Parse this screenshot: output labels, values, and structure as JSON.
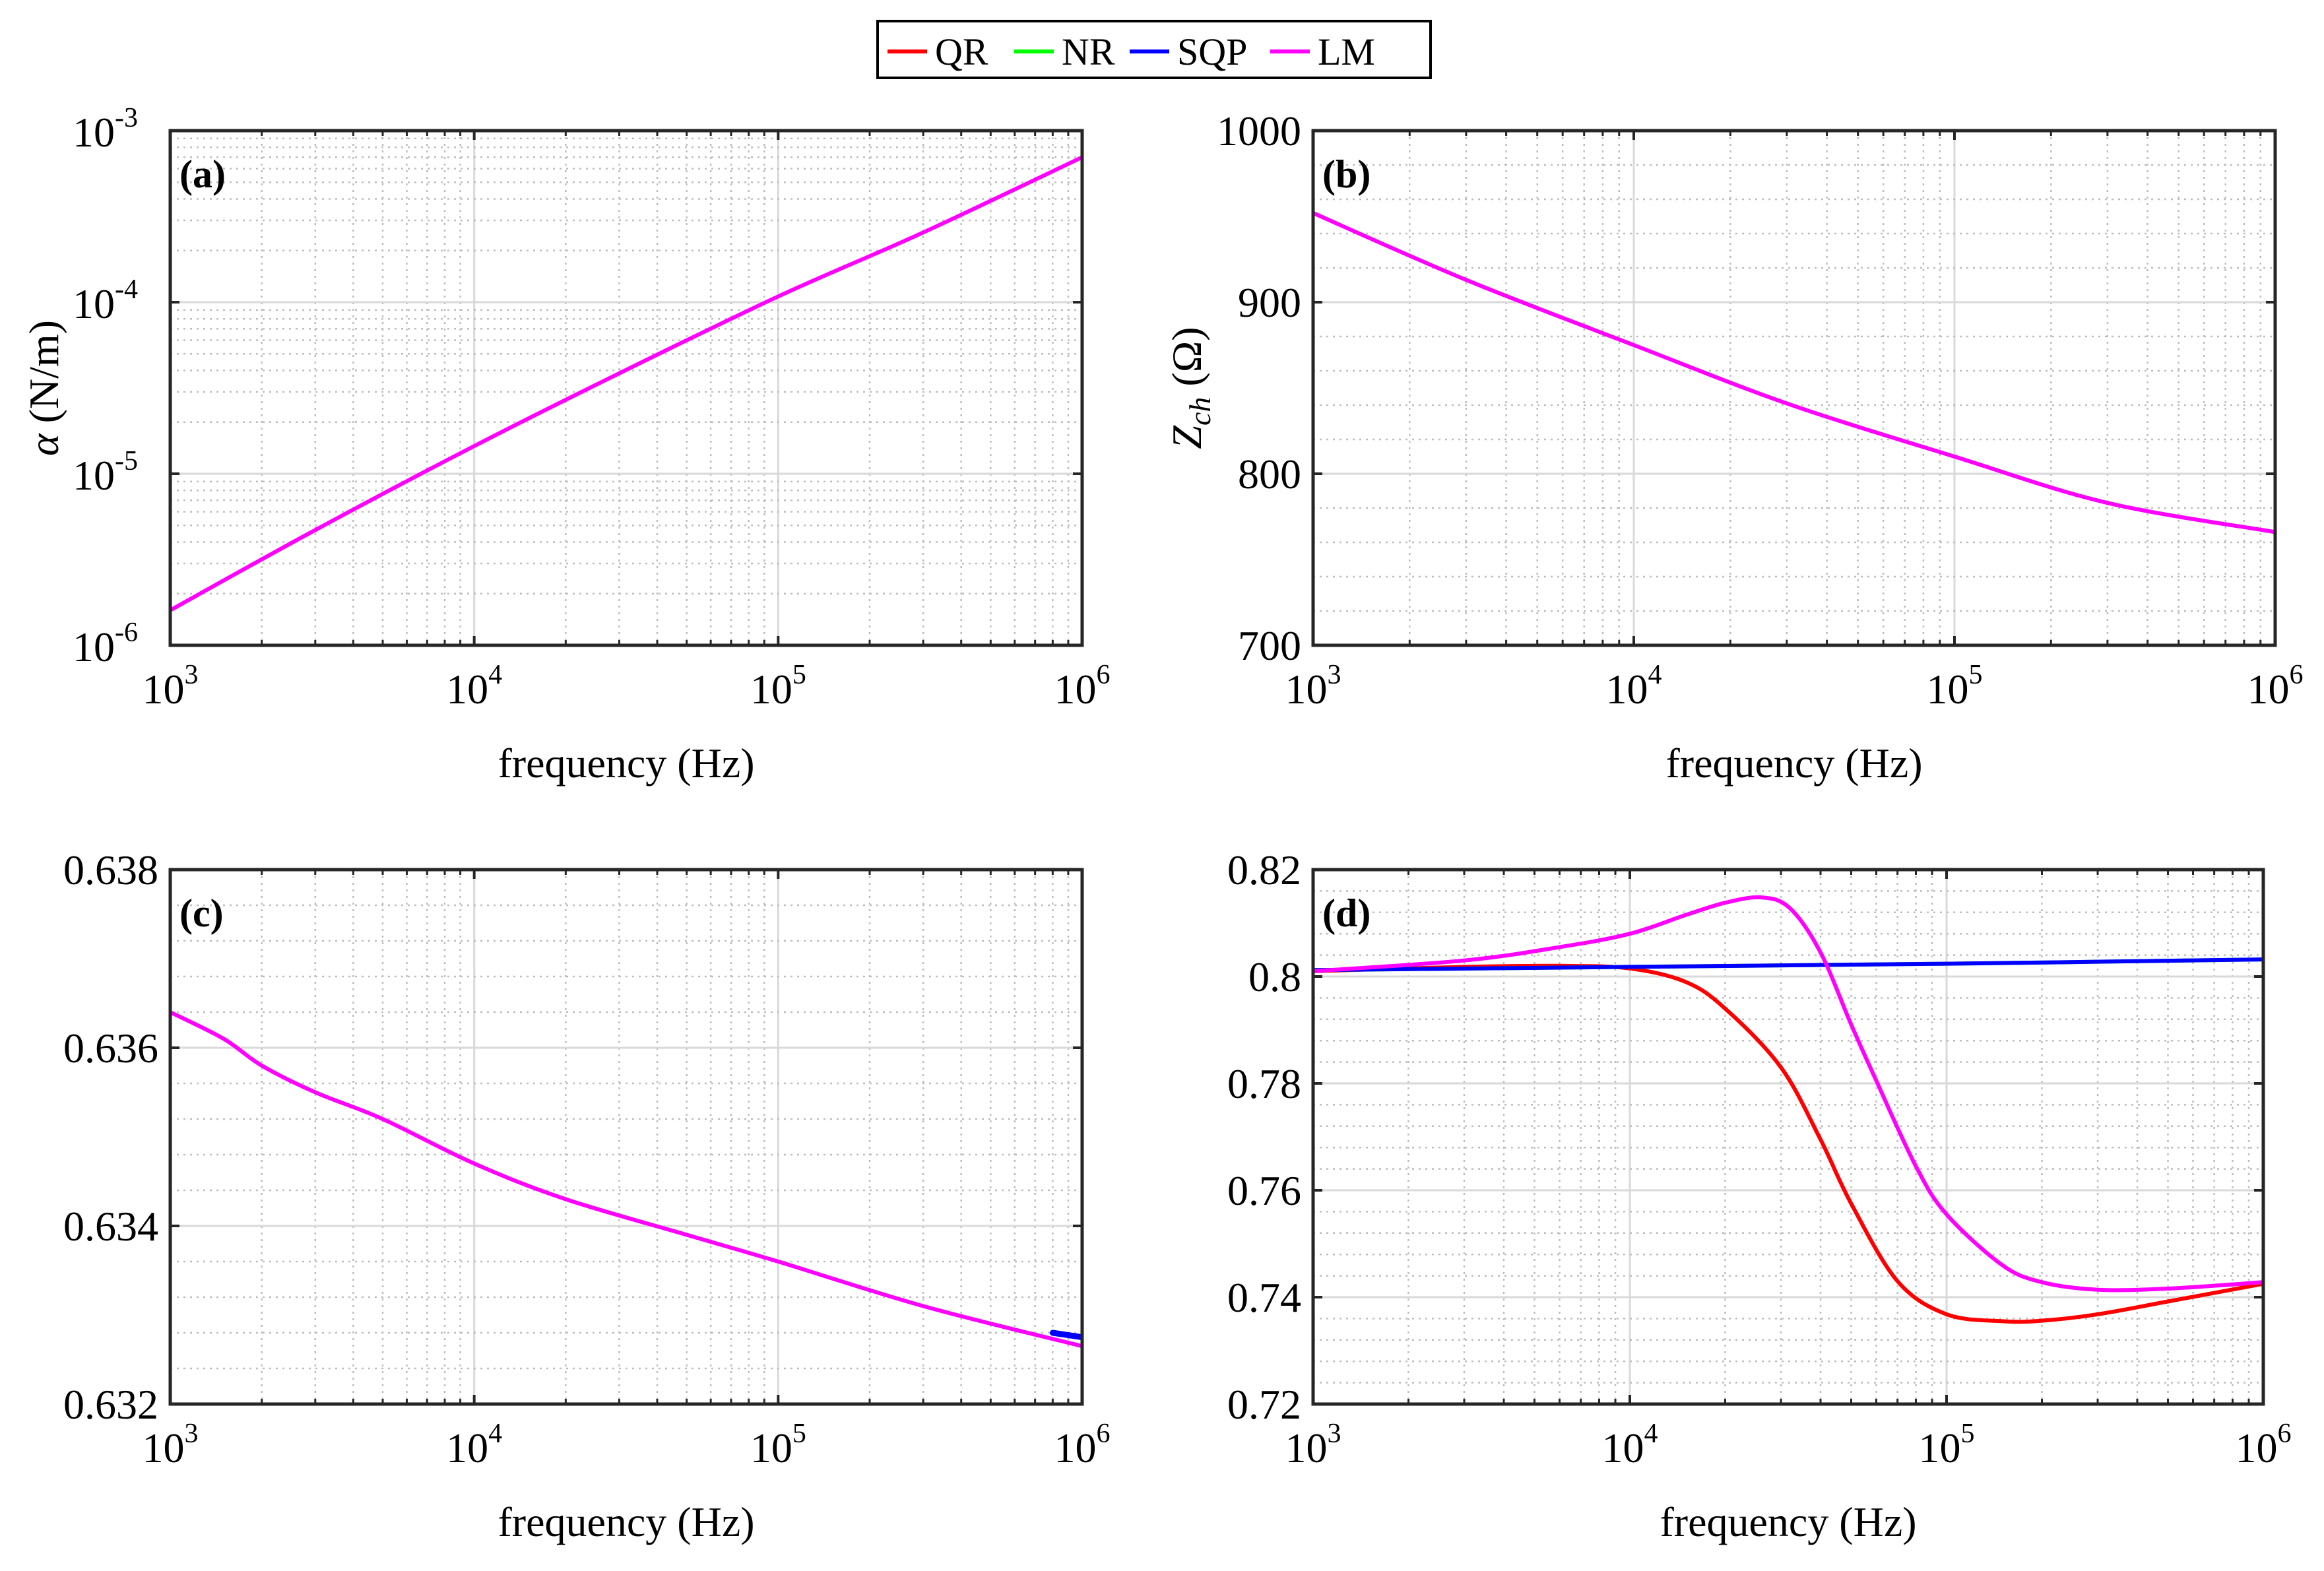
{
  "legend": {
    "entries": [
      {
        "name": "QR",
        "color": "#ff0000"
      },
      {
        "name": "NR",
        "color": "#00ff00"
      },
      {
        "name": "SQP",
        "color": "#0000ff"
      },
      {
        "name": "LM",
        "color": "#ff00ff"
      }
    ]
  },
  "chart_data": [
    {
      "id": "a",
      "type": "line",
      "panel_label": "(a)",
      "xscale": "log",
      "yscale": "log",
      "xlim": [
        1000,
        1000000
      ],
      "ylim": [
        1e-06,
        0.001
      ],
      "xlabel": "frequency (Hz)",
      "ylabel_main": "α",
      "ylabel_sub": "",
      "ylabel_rest": " (N/m)",
      "xticks": [
        {
          "base": "10",
          "exp": "3"
        },
        {
          "base": "10",
          "exp": "4"
        },
        {
          "base": "10",
          "exp": "5"
        },
        {
          "base": "10",
          "exp": "6"
        }
      ],
      "yticks": [
        {
          "base": "10",
          "exp": "-6"
        },
        {
          "base": "10",
          "exp": "-5"
        },
        {
          "base": "10",
          "exp": "-4"
        },
        {
          "base": "10",
          "exp": "-3"
        }
      ],
      "grid": true,
      "series": [
        {
          "name": "LM",
          "x": [
            1000,
            3000,
            10000,
            30000,
            100000,
            300000,
            1000000
          ],
          "y": [
            1.6e-06,
            4.7e-06,
            1.45e-05,
            3.85e-05,
            0.000108,
            0.000255,
            0.0007
          ]
        }
      ]
    },
    {
      "id": "b",
      "type": "line",
      "panel_label": "(b)",
      "xscale": "log",
      "yscale": "linear",
      "xlim": [
        1000,
        1000000
      ],
      "ylim": [
        700,
        1000
      ],
      "xlabel": "frequency (Hz)",
      "ylabel_main": "Z",
      "ylabel_sub": "ch",
      "ylabel_rest": " (Ω)",
      "xticks": [
        {
          "base": "10",
          "exp": "3"
        },
        {
          "base": "10",
          "exp": "4"
        },
        {
          "base": "10",
          "exp": "5"
        },
        {
          "base": "10",
          "exp": "6"
        }
      ],
      "yticks": [
        {
          "value": 700,
          "label": "700"
        },
        {
          "value": 800,
          "label": "800"
        },
        {
          "value": 900,
          "label": "900"
        },
        {
          "value": 1000,
          "label": "1000"
        }
      ],
      "grid": true,
      "series": [
        {
          "name": "LM",
          "x": [
            1000,
            3000,
            10000,
            30000,
            100000,
            300000,
            1000000
          ],
          "y": [
            952,
            913,
            875,
            841,
            810,
            783,
            766
          ]
        }
      ]
    },
    {
      "id": "c",
      "type": "line",
      "panel_label": "(c)",
      "xscale": "log",
      "yscale": "linear",
      "xlim": [
        1000,
        1000000
      ],
      "ylim": [
        0.632,
        0.638
      ],
      "xlabel": "frequency (Hz)",
      "ylabel_main": "",
      "ylabel_sub": "",
      "ylabel_rest": "",
      "xticks": [
        {
          "base": "10",
          "exp": "3"
        },
        {
          "base": "10",
          "exp": "4"
        },
        {
          "base": "10",
          "exp": "5"
        },
        {
          "base": "10",
          "exp": "6"
        }
      ],
      "yticks": [
        {
          "value": 0.632,
          "label": "0.632"
        },
        {
          "value": 0.634,
          "label": "0.634"
        },
        {
          "value": 0.636,
          "label": "0.636"
        },
        {
          "value": 0.638,
          "label": "0.638"
        }
      ],
      "grid": true,
      "series": [
        {
          "name": "SQP",
          "x": [
            800000,
            1000000
          ],
          "y": [
            0.6328,
            0.63275
          ]
        },
        {
          "name": "LM",
          "x": [
            1000,
            1500,
            2000,
            3000,
            5000,
            10000,
            20000,
            50000,
            100000,
            300000,
            1000000
          ],
          "y": [
            0.6364,
            0.6361,
            0.6358,
            0.6355,
            0.6352,
            0.6347,
            0.6343,
            0.6339,
            0.6336,
            0.6331,
            0.63265
          ]
        }
      ]
    },
    {
      "id": "d",
      "type": "line",
      "panel_label": "(d)",
      "xscale": "log",
      "yscale": "linear",
      "xlim": [
        1000,
        1000000
      ],
      "ylim": [
        0.72,
        0.82
      ],
      "xlabel": "frequency (Hz)",
      "ylabel_main": "",
      "ylabel_sub": "",
      "ylabel_rest": "",
      "xticks": [
        {
          "base": "10",
          "exp": "3"
        },
        {
          "base": "10",
          "exp": "4"
        },
        {
          "base": "10",
          "exp": "5"
        },
        {
          "base": "10",
          "exp": "6"
        }
      ],
      "yticks": [
        {
          "value": 0.72,
          "label": "0.72"
        },
        {
          "value": 0.74,
          "label": "0.74"
        },
        {
          "value": 0.76,
          "label": "0.76"
        },
        {
          "value": 0.78,
          "label": "0.78"
        },
        {
          "value": 0.8,
          "label": "0.8"
        },
        {
          "value": 0.82,
          "label": "0.82"
        }
      ],
      "grid": true,
      "series": [
        {
          "name": "QR",
          "x": [
            1000,
            3000,
            6000,
            10000,
            15000,
            20000,
            30000,
            40000,
            50000,
            70000,
            100000,
            150000,
            200000,
            300000,
            500000,
            1000000
          ],
          "y": [
            0.801,
            0.8018,
            0.802,
            0.8015,
            0.799,
            0.794,
            0.783,
            0.7695,
            0.7575,
            0.743,
            0.7368,
            0.7355,
            0.7356,
            0.7368,
            0.7392,
            0.7425
          ]
        },
        {
          "name": "NR",
          "x": [
            1000,
            10000,
            100000,
            1000000
          ],
          "y": [
            0.8012,
            0.8018,
            0.8024,
            0.8032
          ]
        },
        {
          "name": "SQP",
          "x": [
            1000,
            10000,
            100000,
            1000000
          ],
          "y": [
            0.8012,
            0.8018,
            0.8024,
            0.8032
          ]
        },
        {
          "name": "LM",
          "x": [
            1000,
            3000,
            6000,
            10000,
            15000,
            20000,
            26000,
            32000,
            40000,
            50000,
            60000,
            80000,
            100000,
            150000,
            200000,
            300000,
            500000,
            1000000
          ],
          "y": [
            0.801,
            0.803,
            0.8055,
            0.808,
            0.8115,
            0.8138,
            0.8148,
            0.8128,
            0.8045,
            0.791,
            0.7805,
            0.7645,
            0.7555,
            0.746,
            0.7428,
            0.7414,
            0.7416,
            0.7428
          ]
        }
      ]
    }
  ]
}
